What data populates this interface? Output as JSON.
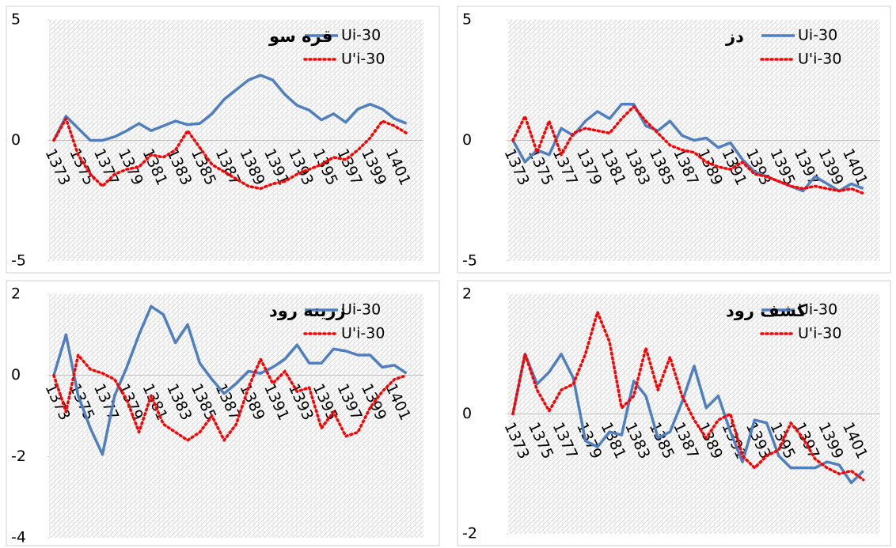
{
  "chart_data": [
    {
      "type": "line",
      "title": "قره سو",
      "categories": [
        "1373",
        null,
        "1375",
        null,
        "1377",
        null,
        "1379",
        null,
        "1381",
        null,
        "1383",
        null,
        "1385",
        null,
        "1387",
        null,
        "1389",
        null,
        "1391",
        null,
        "1393",
        null,
        "1395",
        null,
        "1397",
        null,
        "1399",
        null,
        "1401",
        null
      ],
      "series": [
        {
          "name": "Ui-30",
          "color": "#4f7fbf",
          "style": "solid",
          "values": [
            0,
            1,
            0.5,
            0,
            0,
            0.15,
            0.4,
            0.7,
            0.4,
            0.6,
            0.8,
            0.65,
            0.7,
            1.1,
            1.7,
            2.1,
            2.5,
            2.7,
            2.5,
            1.9,
            1.45,
            1.25,
            0.85,
            1.1,
            0.75,
            1.3,
            1.5,
            1.3,
            0.9,
            0.7
          ]
        },
        {
          "name": "U'i-30",
          "color": "#ff0000",
          "style": "dotted",
          "values": [
            0,
            0.9,
            -0.6,
            -1.4,
            -1.9,
            -1.4,
            -1.2,
            -1.1,
            -0.6,
            -0.7,
            -0.4,
            0.4,
            -0.3,
            -1,
            -1.3,
            -1.6,
            -1.9,
            -2,
            -1.8,
            -1.7,
            -1.4,
            -1.2,
            -1,
            -0.7,
            -0.8,
            -0.4,
            0.1,
            0.8,
            0.6,
            0.3
          ]
        }
      ],
      "ylim": [
        -5,
        5
      ],
      "yticks": [
        -5,
        0,
        5
      ]
    },
    {
      "type": "line",
      "title": "دز",
      "categories": [
        "1373",
        null,
        "1375",
        null,
        "1377",
        null,
        "1379",
        null,
        "1381",
        null,
        "1383",
        null,
        "1385",
        null,
        "1387",
        null,
        "1389",
        null,
        "1391",
        null,
        "1393",
        null,
        "1395",
        null,
        "1397",
        null,
        "1399",
        null,
        "1401",
        null
      ],
      "series": [
        {
          "name": "Ui-30",
          "color": "#4f7fbf",
          "style": "solid",
          "values": [
            0,
            -0.9,
            -0.4,
            -0.6,
            0.5,
            0.2,
            0.8,
            1.2,
            0.9,
            1.5,
            1.5,
            0.6,
            0.4,
            0.8,
            0.2,
            0,
            0.1,
            -0.3,
            -0.1,
            -0.8,
            -1.3,
            -1.5,
            -1.7,
            -1.9,
            -2.1,
            -1.5,
            -1.8,
            -2.1,
            -1.8,
            -2
          ]
        },
        {
          "name": "U'i-30",
          "color": "#ff0000",
          "style": "dotted",
          "values": [
            0,
            1,
            -0.5,
            0.8,
            -0.6,
            0.3,
            0.5,
            0.4,
            0.3,
            0.9,
            1.4,
            0.8,
            0.3,
            -0.2,
            -0.4,
            -0.5,
            -0.9,
            -1.1,
            -1.2,
            -0.9,
            -1.4,
            -1.5,
            -1.7,
            -1.9,
            -2,
            -1.9,
            -2,
            -2.1,
            -2,
            -2.2
          ]
        }
      ],
      "ylim": [
        -5,
        5
      ],
      "yticks": [
        -5,
        0,
        5
      ]
    },
    {
      "type": "line",
      "title": "زرینه رود",
      "categories": [
        "1373",
        null,
        "1375",
        null,
        "1377",
        null,
        "1379",
        null,
        "1381",
        null,
        "1383",
        null,
        "1385",
        null,
        "1387",
        null,
        "1389",
        null,
        "1391",
        null,
        "1393",
        null,
        "1395",
        null,
        "1397",
        null,
        "1399",
        null,
        "1401",
        null
      ],
      "series": [
        {
          "name": "Ui-30",
          "color": "#4f7fbf",
          "style": "solid",
          "values": [
            0,
            1,
            -0.5,
            -1.3,
            -1.95,
            -0.5,
            0.2,
            1,
            1.7,
            1.5,
            0.8,
            1.25,
            0.3,
            -0.1,
            -0.45,
            -0.2,
            0.1,
            0.05,
            0.2,
            0.4,
            0.75,
            0.3,
            0.3,
            0.65,
            0.6,
            0.5,
            0.5,
            0.2,
            0.25,
            0.05
          ]
        },
        {
          "name": "U'i-30",
          "color": "#ff0000",
          "style": "dotted",
          "values": [
            0,
            -0.9,
            0.5,
            0.15,
            0.05,
            -0.1,
            -0.6,
            -1.4,
            -0.5,
            -1.2,
            -1.4,
            -1.6,
            -1.4,
            -1,
            -1.6,
            -1.2,
            -0.3,
            0.4,
            -0.2,
            0.1,
            -0.4,
            -0.3,
            -1.3,
            -0.9,
            -1.5,
            -1.4,
            -0.8,
            -0.4,
            -0.1,
            0
          ]
        }
      ],
      "ylim": [
        -4,
        2
      ],
      "yticks": [
        -4,
        -2,
        0,
        2
      ]
    },
    {
      "type": "line",
      "title": "کشف رود",
      "categories": [
        "1373",
        null,
        "1375",
        null,
        "1377",
        null,
        "1379",
        null,
        "1381",
        null,
        "1383",
        null,
        "1385",
        null,
        "1387",
        null,
        "1389",
        null,
        "1391",
        null,
        "1393",
        null,
        "1395",
        null,
        "1397",
        null,
        "1399",
        null,
        "1401",
        null
      ],
      "series": [
        {
          "name": "Ui-30",
          "color": "#4f7fbf",
          "style": "solid",
          "values": [
            0,
            1,
            0.5,
            0.7,
            1,
            0.6,
            -0.45,
            -0.55,
            -0.3,
            -0.35,
            0.55,
            0.3,
            -0.4,
            -0.3,
            0.2,
            0.8,
            0.1,
            0.3,
            -0.3,
            -0.8,
            -0.1,
            -0.15,
            -0.7,
            -0.9,
            -0.9,
            -0.9,
            -0.8,
            -0.85,
            -1.15,
            -0.95
          ]
        },
        {
          "name": "U'i-30",
          "color": "#ff0000",
          "style": "dotted",
          "values": [
            0,
            1,
            0.4,
            0.05,
            0.4,
            0.5,
            1,
            1.7,
            1.2,
            0.1,
            0.3,
            1.1,
            0.4,
            0.95,
            0.3,
            -0.1,
            -0.4,
            -0.1,
            0,
            -0.7,
            -0.9,
            -0.7,
            -0.6,
            -0.15,
            -0.4,
            -0.75,
            -0.9,
            -1,
            -0.95,
            -1.1
          ]
        }
      ],
      "ylim": [
        -2,
        2
      ],
      "yticks": [
        -2,
        0,
        2
      ]
    }
  ]
}
